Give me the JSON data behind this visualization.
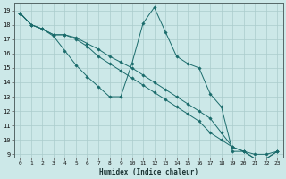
{
  "xlabel": "Humidex (Indice chaleur)",
  "xlim": [
    -0.5,
    23.5
  ],
  "ylim": [
    8.8,
    19.5
  ],
  "yticks": [
    9,
    10,
    11,
    12,
    13,
    14,
    15,
    16,
    17,
    18,
    19
  ],
  "xticks": [
    0,
    1,
    2,
    3,
    4,
    5,
    6,
    7,
    8,
    9,
    10,
    11,
    12,
    13,
    14,
    15,
    16,
    17,
    18,
    19,
    20,
    21,
    22,
    23
  ],
  "background_color": "#cce8e8",
  "line_color": "#1a6b6b",
  "grid_color": "#aacccc",
  "line1": {
    "x": [
      0,
      1,
      2,
      3,
      4,
      5,
      6,
      7,
      8,
      9,
      10,
      11,
      12,
      13,
      14,
      15,
      16,
      17,
      18,
      19,
      20,
      21,
      22,
      23
    ],
    "y": [
      18.8,
      18.0,
      17.7,
      17.2,
      16.2,
      15.2,
      14.4,
      13.7,
      13.0,
      13.0,
      15.3,
      18.1,
      19.2,
      17.5,
      15.8,
      15.3,
      15.0,
      13.2,
      12.3,
      9.2,
      9.2,
      8.7,
      8.7,
      9.2
    ]
  },
  "line2": {
    "x": [
      0,
      1,
      2,
      3,
      4,
      5,
      6,
      7,
      8,
      9,
      10,
      11,
      12,
      13,
      14,
      15,
      16,
      17,
      18,
      19,
      20,
      21,
      22,
      23
    ],
    "y": [
      18.8,
      18.0,
      17.7,
      17.3,
      17.3,
      17.1,
      16.7,
      16.3,
      15.8,
      15.4,
      15.0,
      14.5,
      14.0,
      13.5,
      13.0,
      12.5,
      12.0,
      11.5,
      10.5,
      9.5,
      9.2,
      9.0,
      9.0,
      9.2
    ]
  },
  "line3": {
    "x": [
      0,
      1,
      2,
      3,
      4,
      5,
      6,
      7,
      8,
      9,
      10,
      11,
      12,
      13,
      14,
      15,
      16,
      17,
      18,
      19,
      20,
      21,
      22,
      23
    ],
    "y": [
      18.8,
      18.0,
      17.7,
      17.3,
      17.3,
      17.0,
      16.5,
      15.8,
      15.3,
      14.8,
      14.3,
      13.8,
      13.3,
      12.8,
      12.3,
      11.8,
      11.3,
      10.5,
      10.0,
      9.5,
      9.2,
      8.7,
      8.7,
      9.2
    ]
  }
}
